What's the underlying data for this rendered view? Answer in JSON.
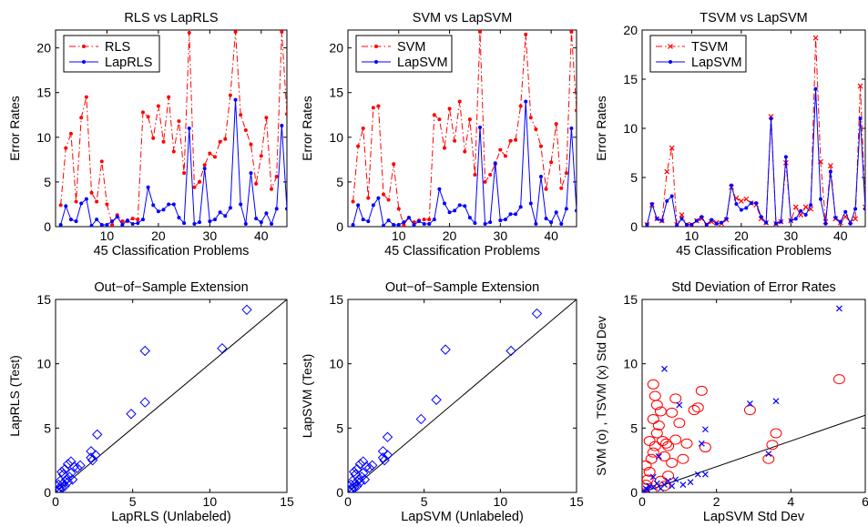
{
  "chart_data": [
    {
      "type": "line",
      "title": "RLS vs LapRLS",
      "xlabel": "45 Classification Problems",
      "ylabel": "Error Rates",
      "xlim": [
        0,
        45
      ],
      "ylim": [
        0,
        22
      ],
      "xticks": [
        10,
        20,
        30,
        40
      ],
      "yticks": [
        0,
        5,
        10,
        15,
        20
      ],
      "legend_position": "top-left",
      "x": [
        1,
        2,
        3,
        4,
        5,
        6,
        7,
        8,
        9,
        10,
        11,
        12,
        13,
        14,
        15,
        16,
        17,
        18,
        19,
        20,
        21,
        22,
        23,
        24,
        25,
        26,
        27,
        28,
        29,
        30,
        31,
        32,
        33,
        34,
        35,
        36,
        37,
        38,
        39,
        40,
        41,
        42,
        43,
        44,
        45
      ],
      "series": [
        {
          "name": "RLS",
          "color": "#ff0000",
          "style": "dashdot",
          "marker": "dot",
          "values": [
            2.4,
            8.8,
            10.4,
            2.8,
            12.2,
            14.5,
            3.8,
            2.8,
            7.3,
            2.5,
            0.2,
            1.3,
            0.6,
            0.6,
            0.9,
            0.8,
            12.8,
            12.3,
            9.9,
            13.5,
            9.5,
            14.5,
            8.4,
            11.8,
            6.0,
            21.7,
            4.4,
            5.0,
            6.9,
            8.2,
            7.8,
            9.5,
            9.8,
            14.7,
            21.8,
            12.5,
            10.8,
            9.2,
            4.8,
            7.9,
            12.2,
            4.2,
            5.6,
            21.8,
            12.6
          ]
        },
        {
          "name": "LapRLS",
          "color": "#0000ff",
          "style": "solid",
          "marker": "dot",
          "values": [
            0.2,
            2.3,
            0.8,
            0.6,
            2.6,
            3.1,
            0.1,
            0.8,
            0.2,
            0.2,
            0.6,
            1.1,
            0.2,
            0.7,
            0.3,
            0.4,
            0.8,
            4.4,
            2.4,
            1.7,
            1.9,
            2.5,
            2.5,
            1.0,
            0.4,
            11.0,
            0.3,
            0.5,
            6.5,
            0.6,
            0.8,
            1.6,
            1.2,
            2.1,
            14.2,
            2.5,
            0.3,
            6.0,
            0.9,
            0.5,
            1.5,
            0.3,
            2.0,
            11.3,
            2.0
          ]
        }
      ]
    },
    {
      "type": "line",
      "title": "SVM vs LapSVM",
      "xlabel": "45 Classification Problems",
      "ylabel": "Error Rates",
      "xlim": [
        0,
        45
      ],
      "ylim": [
        0,
        22
      ],
      "xticks": [
        10,
        20,
        30,
        40
      ],
      "yticks": [
        0,
        5,
        10,
        15,
        20
      ],
      "legend_position": "top-left",
      "x": [
        1,
        2,
        3,
        4,
        5,
        6,
        7,
        8,
        9,
        10,
        11,
        12,
        13,
        14,
        15,
        16,
        17,
        18,
        19,
        20,
        21,
        22,
        23,
        24,
        25,
        26,
        27,
        28,
        29,
        30,
        31,
        32,
        33,
        34,
        35,
        36,
        37,
        38,
        39,
        40,
        41,
        42,
        43,
        44,
        45
      ],
      "series": [
        {
          "name": "SVM",
          "color": "#ff0000",
          "style": "dashdot",
          "marker": "dot",
          "values": [
            2.8,
            9.0,
            11.0,
            3.2,
            13.3,
            13.5,
            3.6,
            3.0,
            7.0,
            2.0,
            0.2,
            1.0,
            0.5,
            0.7,
            0.8,
            0.8,
            12.5,
            12.0,
            8.8,
            13.2,
            9.6,
            14.0,
            8.4,
            12.0,
            5.8,
            21.8,
            5.0,
            5.8,
            7.0,
            8.6,
            7.9,
            9.6,
            9.7,
            13.5,
            21.5,
            12.2,
            10.9,
            9.0,
            4.2,
            7.2,
            11.5,
            4.3,
            6.0,
            21.8,
            13.0
          ]
        },
        {
          "name": "LapSVM",
          "color": "#0000ff",
          "style": "solid",
          "marker": "dot",
          "values": [
            0.2,
            2.4,
            0.8,
            0.6,
            2.4,
            3.2,
            0.1,
            0.7,
            0.2,
            0.2,
            0.5,
            1.0,
            0.2,
            0.6,
            0.3,
            0.3,
            0.8,
            4.2,
            2.6,
            1.6,
            1.8,
            2.4,
            2.3,
            1.0,
            0.4,
            11.1,
            0.3,
            0.5,
            7.1,
            0.7,
            0.8,
            1.4,
            1.4,
            2.2,
            14.0,
            2.6,
            0.3,
            5.6,
            0.9,
            0.5,
            1.6,
            0.3,
            2.0,
            11.0,
            1.8
          ]
        }
      ]
    },
    {
      "type": "line",
      "title": "TSVM vs LapSVM",
      "xlabel": "45 Classification Problems",
      "ylabel": "Error Rates",
      "xlim": [
        0,
        45
      ],
      "ylim": [
        0,
        20
      ],
      "xticks": [
        10,
        20,
        30,
        40
      ],
      "yticks": [
        0,
        5,
        10,
        15,
        20
      ],
      "legend_position": "top-left",
      "x": [
        1,
        2,
        3,
        4,
        5,
        6,
        7,
        8,
        9,
        10,
        11,
        12,
        13,
        14,
        15,
        16,
        17,
        18,
        19,
        20,
        21,
        22,
        23,
        24,
        25,
        26,
        27,
        28,
        29,
        30,
        31,
        32,
        33,
        34,
        35,
        36,
        37,
        38,
        39,
        40,
        41,
        42,
        43,
        44,
        45
      ],
      "series": [
        {
          "name": "TSVM",
          "color": "#ff0000",
          "style": "dashdot",
          "marker": "x",
          "values": [
            0.2,
            2.2,
            0.8,
            0.6,
            5.6,
            8.0,
            0.2,
            1.2,
            0.2,
            0.2,
            0.6,
            0.8,
            0.2,
            0.5,
            0.4,
            0.3,
            0.7,
            4.0,
            2.9,
            2.6,
            2.8,
            2.4,
            2.2,
            0.8,
            0.4,
            11.2,
            0.3,
            0.5,
            6.5,
            0.6,
            2.0,
            1.2,
            2.0,
            1.8,
            19.2,
            6.6,
            0.5,
            6.2,
            0.8,
            0.4,
            1.0,
            0.5,
            0.8,
            14.3,
            2.0
          ]
        },
        {
          "name": "LapSVM",
          "color": "#0000ff",
          "style": "solid",
          "marker": "dot",
          "values": [
            0.2,
            2.3,
            0.8,
            0.6,
            2.6,
            3.1,
            0.1,
            0.8,
            0.2,
            0.2,
            0.6,
            1.0,
            0.2,
            0.7,
            0.3,
            0.4,
            0.8,
            4.2,
            2.3,
            1.7,
            1.9,
            2.4,
            2.4,
            1.0,
            0.4,
            11.0,
            0.3,
            0.5,
            7.1,
            0.6,
            0.8,
            1.6,
            1.2,
            2.2,
            14.0,
            2.8,
            0.3,
            5.6,
            0.9,
            0.5,
            1.5,
            0.3,
            1.8,
            11.0,
            1.8
          ]
        }
      ]
    },
    {
      "type": "scatter",
      "title": "Out−of−Sample Extension",
      "xlabel": "LapRLS (Unlabeled)",
      "ylabel": "LapRLS (Test)",
      "xlim": [
        0,
        15
      ],
      "ylim": [
        0,
        15
      ],
      "xticks": [
        0,
        5,
        10,
        15
      ],
      "yticks": [
        0,
        5,
        10,
        15
      ],
      "reference_line": {
        "from": [
          0,
          0
        ],
        "to": [
          15,
          15
        ]
      },
      "series": [
        {
          "marker": "diamond",
          "color": "#0000ff",
          "points": [
            [
              0.1,
              0.1
            ],
            [
              0.2,
              0.3
            ],
            [
              0.3,
              0.2
            ],
            [
              0.2,
              0.6
            ],
            [
              0.4,
              0.4
            ],
            [
              0.5,
              0.7
            ],
            [
              0.6,
              0.5
            ],
            [
              0.3,
              0.9
            ],
            [
              0.7,
              1.0
            ],
            [
              0.8,
              0.8
            ],
            [
              0.9,
              1.2
            ],
            [
              0.5,
              1.4
            ],
            [
              1.0,
              1.5
            ],
            [
              1.1,
              1.0
            ],
            [
              0.6,
              1.8
            ],
            [
              1.2,
              2.0
            ],
            [
              0.8,
              2.2
            ],
            [
              1.0,
              2.4
            ],
            [
              1.4,
              1.9
            ],
            [
              1.6,
              2.1
            ],
            [
              0.4,
              1.6
            ],
            [
              2.3,
              2.7
            ],
            [
              2.3,
              3.2
            ],
            [
              2.6,
              2.9
            ],
            [
              2.4,
              2.5
            ],
            [
              2.7,
              4.5
            ],
            [
              4.9,
              6.1
            ],
            [
              5.8,
              7.0
            ],
            [
              5.8,
              11.0
            ],
            [
              10.8,
              11.2
            ],
            [
              12.4,
              14.2
            ]
          ]
        }
      ]
    },
    {
      "type": "scatter",
      "title": "Out−of−Sample Extension",
      "xlabel": "LapSVM (Unlabeled)",
      "ylabel": "LapSVM (Test)",
      "xlim": [
        0,
        15
      ],
      "ylim": [
        0,
        15
      ],
      "xticks": [
        0,
        5,
        10,
        15
      ],
      "yticks": [
        0,
        5,
        10,
        15
      ],
      "reference_line": {
        "from": [
          0,
          0
        ],
        "to": [
          15,
          15
        ]
      },
      "series": [
        {
          "marker": "diamond",
          "color": "#0000ff",
          "points": [
            [
              0.1,
              0.1
            ],
            [
              0.2,
              0.3
            ],
            [
              0.3,
              0.2
            ],
            [
              0.2,
              0.6
            ],
            [
              0.4,
              0.4
            ],
            [
              0.5,
              0.7
            ],
            [
              0.6,
              0.5
            ],
            [
              0.3,
              0.9
            ],
            [
              0.7,
              1.0
            ],
            [
              0.8,
              0.8
            ],
            [
              0.9,
              1.2
            ],
            [
              0.5,
              1.4
            ],
            [
              1.0,
              1.5
            ],
            [
              1.1,
              1.0
            ],
            [
              0.6,
              1.8
            ],
            [
              1.2,
              2.0
            ],
            [
              0.8,
              2.2
            ],
            [
              1.0,
              2.4
            ],
            [
              1.4,
              1.9
            ],
            [
              1.6,
              2.1
            ],
            [
              0.4,
              1.6
            ],
            [
              2.3,
              2.7
            ],
            [
              2.3,
              3.2
            ],
            [
              2.6,
              2.9
            ],
            [
              2.4,
              2.5
            ],
            [
              2.6,
              4.3
            ],
            [
              4.8,
              5.7
            ],
            [
              5.8,
              7.2
            ],
            [
              6.4,
              11.1
            ],
            [
              10.7,
              11.0
            ],
            [
              12.4,
              13.9
            ]
          ]
        }
      ]
    },
    {
      "type": "scatter",
      "title": "Std Deviation of Error Rates",
      "xlabel": "LapSVM Std Dev",
      "ylabel": "SVM (o) , TSVM (x) Std Dev",
      "xlim": [
        0,
        6
      ],
      "ylim": [
        0,
        15
      ],
      "xticks": [
        0,
        2,
        4,
        6
      ],
      "yticks": [
        0,
        5,
        10,
        15
      ],
      "reference_line": {
        "from": [
          0,
          0
        ],
        "to": [
          6,
          6
        ]
      },
      "series": [
        {
          "marker": "o",
          "color": "#ff0000",
          "points": [
            [
              0.05,
              0.3
            ],
            [
              0.1,
              0.6
            ],
            [
              0.15,
              1.0
            ],
            [
              0.2,
              1.6
            ],
            [
              0.1,
              2.1
            ],
            [
              0.25,
              2.6
            ],
            [
              0.3,
              3.1
            ],
            [
              0.35,
              3.6
            ],
            [
              0.2,
              4.0
            ],
            [
              0.4,
              4.6
            ],
            [
              0.45,
              5.2
            ],
            [
              0.3,
              5.7
            ],
            [
              0.5,
              6.3
            ],
            [
              0.4,
              6.8
            ],
            [
              0.35,
              7.5
            ],
            [
              0.3,
              8.4
            ],
            [
              0.6,
              0.5
            ],
            [
              0.7,
              1.3
            ],
            [
              0.8,
              2.3
            ],
            [
              0.6,
              2.8
            ],
            [
              0.7,
              3.6
            ],
            [
              0.9,
              4.1
            ],
            [
              0.8,
              6.2
            ],
            [
              0.9,
              7.3
            ],
            [
              1.0,
              5.4
            ],
            [
              1.1,
              2.6
            ],
            [
              1.2,
              3.8
            ],
            [
              1.4,
              6.4
            ],
            [
              1.5,
              6.6
            ],
            [
              1.6,
              7.9
            ],
            [
              1.7,
              3.5
            ],
            [
              2.9,
              6.4
            ],
            [
              3.6,
              4.6
            ],
            [
              3.5,
              3.7
            ],
            [
              3.4,
              2.6
            ],
            [
              5.3,
              8.8
            ],
            [
              0.5,
              0.9
            ],
            [
              0.25,
              0.2
            ],
            [
              0.55,
              4.0
            ],
            [
              0.65,
              3.8
            ]
          ]
        },
        {
          "marker": "x",
          "color": "#0000ff",
          "points": [
            [
              0.05,
              0.1
            ],
            [
              0.1,
              0.3
            ],
            [
              0.15,
              0.2
            ],
            [
              0.2,
              0.5
            ],
            [
              0.3,
              0.4
            ],
            [
              0.4,
              0.7
            ],
            [
              0.5,
              0.3
            ],
            [
              0.6,
              0.6
            ],
            [
              0.7,
              0.9
            ],
            [
              0.8,
              0.5
            ],
            [
              0.9,
              1.0
            ],
            [
              1.1,
              0.6
            ],
            [
              1.3,
              0.8
            ],
            [
              1.5,
              1.4
            ],
            [
              1.7,
              1.4
            ],
            [
              0.6,
              9.6
            ],
            [
              1.0,
              6.8
            ],
            [
              1.7,
              4.9
            ],
            [
              1.6,
              3.8
            ],
            [
              2.9,
              6.9
            ],
            [
              3.6,
              7.1
            ],
            [
              3.4,
              3.0
            ],
            [
              5.3,
              14.3
            ],
            [
              0.45,
              2.8
            ],
            [
              0.3,
              1.2
            ]
          ]
        }
      ]
    }
  ]
}
